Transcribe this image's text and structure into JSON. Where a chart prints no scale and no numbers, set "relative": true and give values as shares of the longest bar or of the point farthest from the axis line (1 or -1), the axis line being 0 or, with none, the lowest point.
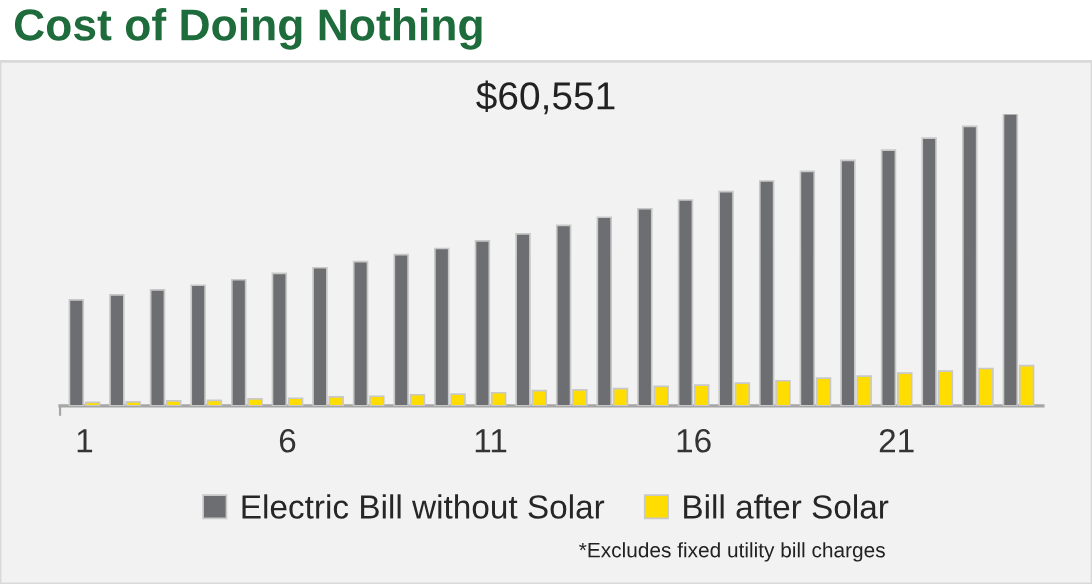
{
  "chart_data": {
    "type": "bar",
    "title": "Cost of Doing Nothing",
    "relative": true,
    "categories": [
      "1",
      null,
      null,
      null,
      null,
      "6",
      null,
      null,
      null,
      null,
      "11",
      null,
      null,
      null,
      null,
      "16",
      null,
      null,
      null,
      null,
      "21",
      null,
      null,
      null
    ],
    "series": [
      {
        "name": "Electric Bill without Solar",
        "color": "#6d6e71",
        "values": [
          0.363,
          0.38,
          0.397,
          0.413,
          0.432,
          0.454,
          0.473,
          0.494,
          0.518,
          0.539,
          0.565,
          0.589,
          0.618,
          0.646,
          0.675,
          0.705,
          0.734,
          0.77,
          0.803,
          0.841,
          0.876,
          0.917,
          0.957,
          1
        ]
      },
      {
        "name": "Bill after Solar",
        "color": "#ffdd00",
        "values": [
          0.012,
          0.014,
          0.017,
          0.019,
          0.024,
          0.026,
          0.031,
          0.033,
          0.038,
          0.04,
          0.045,
          0.052,
          0.055,
          0.059,
          0.067,
          0.071,
          0.078,
          0.086,
          0.095,
          0.102,
          0.112,
          0.119,
          0.128,
          0.138
        ]
      }
    ],
    "annotations": [
      "$60,551",
      "*Excludes fixed utility bill charges"
    ],
    "legend": "bottom"
  }
}
